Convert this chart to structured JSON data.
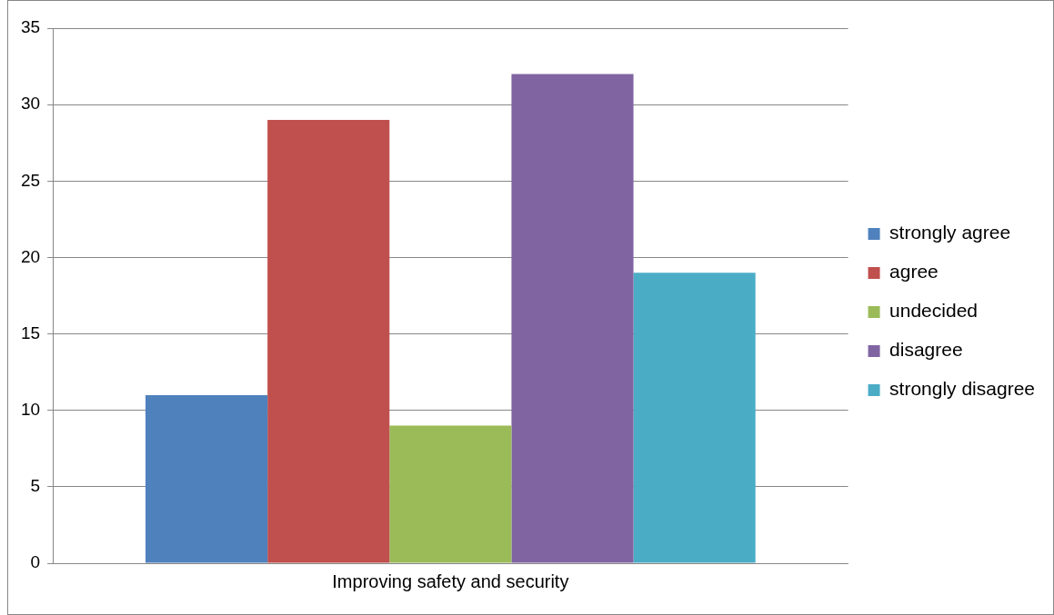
{
  "chart_data": {
    "type": "bar",
    "categories": [
      "Improving safety and security"
    ],
    "series": [
      {
        "name": "strongly agree",
        "color": "#4f81bd",
        "values": [
          11
        ]
      },
      {
        "name": "agree",
        "color": "#c0504d",
        "values": [
          29
        ]
      },
      {
        "name": "undecided",
        "color": "#9bbb59",
        "values": [
          9
        ]
      },
      {
        "name": "disagree",
        "color": "#8064a2",
        "values": [
          32
        ]
      },
      {
        "name": "strongly disagree",
        "color": "#4bacc6",
        "values": [
          19
        ]
      }
    ],
    "ylim": [
      0,
      35
    ],
    "yticks": [
      0,
      5,
      10,
      15,
      20,
      25,
      30,
      35
    ],
    "grid": "y",
    "legend": "right"
  }
}
